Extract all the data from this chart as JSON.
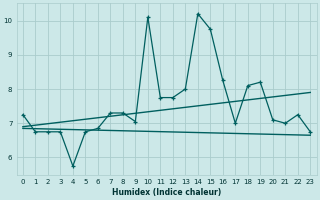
{
  "xlabel": "Humidex (Indice chaleur)",
  "ylabel": "",
  "xlim": [
    -0.5,
    23.5
  ],
  "ylim": [
    5.5,
    10.5
  ],
  "yticks": [
    6,
    7,
    8,
    9,
    10
  ],
  "xticks": [
    0,
    1,
    2,
    3,
    4,
    5,
    6,
    7,
    8,
    9,
    10,
    11,
    12,
    13,
    14,
    15,
    16,
    17,
    18,
    19,
    20,
    21,
    22,
    23
  ],
  "bg_color": "#cce8e8",
  "grid_color": "#aacccc",
  "line_color": "#005f5f",
  "main_series_x": [
    0,
    1,
    2,
    3,
    4,
    5,
    6,
    7,
    8,
    9,
    10,
    11,
    12,
    13,
    14,
    15,
    16,
    17,
    18,
    19,
    20,
    21,
    22,
    23
  ],
  "main_series_y": [
    7.25,
    6.75,
    6.75,
    6.75,
    5.75,
    6.75,
    6.85,
    7.3,
    7.3,
    7.05,
    10.1,
    7.75,
    7.75,
    8.0,
    10.2,
    9.75,
    8.25,
    7.0,
    8.1,
    8.2,
    7.1,
    7.0,
    7.25,
    6.75
  ],
  "trend1_x": [
    0,
    23
  ],
  "trend1_y": [
    6.85,
    6.65
  ],
  "trend2_x": [
    0,
    23
  ],
  "trend2_y": [
    6.9,
    7.9
  ],
  "font_color": "#003333",
  "xlabel_fontsize": 5.5,
  "tick_fontsize": 5.0
}
